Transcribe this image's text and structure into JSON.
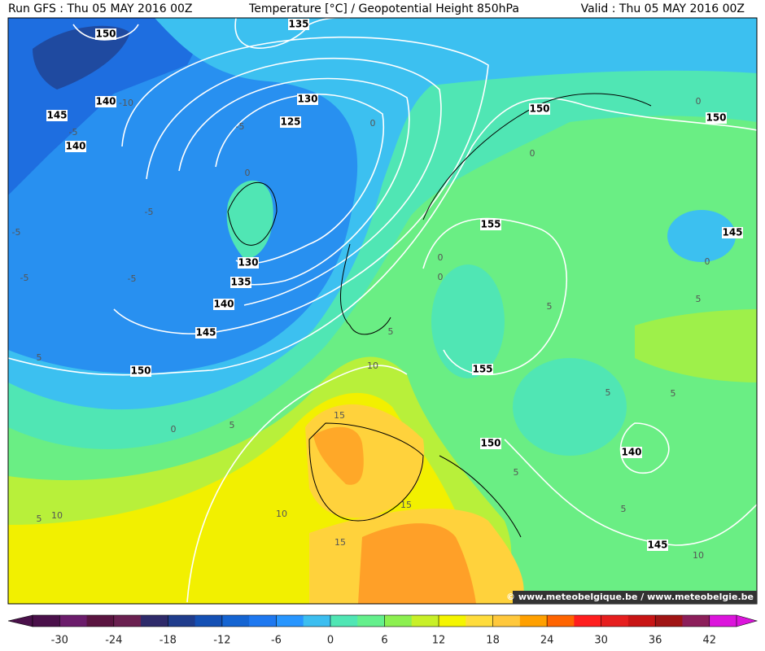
{
  "header": {
    "left": "Run GFS : Thu 05 MAY 2016 00Z",
    "center": "Temperature [°C] / Geopotential Height 850hPa",
    "right": "Valid : Thu 05 MAY 2016 00Z"
  },
  "watermark": "© www.meteobelgique.be / www.meteobelgie.be",
  "map": {
    "height_labels": [
      150,
      135,
      145,
      140,
      140,
      130,
      125,
      130,
      135,
      140,
      145,
      150,
      150,
      150,
      155,
      145,
      155,
      150,
      140,
      145
    ],
    "temperature_labels": [
      -10,
      -5,
      -5,
      0,
      0,
      -5,
      -5,
      -5,
      -5,
      0,
      0,
      0,
      0,
      0,
      5,
      5,
      5,
      5,
      10,
      0,
      5,
      15,
      5,
      5,
      5,
      5,
      5,
      10,
      10,
      15,
      15,
      10
    ]
  },
  "colorbar": {
    "range": [
      -33,
      45
    ],
    "ticks": [
      -30,
      -24,
      -18,
      -12,
      -6,
      0,
      6,
      12,
      18,
      24,
      30,
      36,
      42
    ],
    "colors": [
      "#4a104a",
      "#6b1c6b",
      "#5a1440",
      "#6a2050",
      "#2e2a6a",
      "#1f3c8c",
      "#1450b4",
      "#1464d2",
      "#1e78f0",
      "#2896ff",
      "#3cbef0",
      "#50e6b4",
      "#64f08c",
      "#8cf050",
      "#c8f028",
      "#f5f500",
      "#ffdc3c",
      "#ffc83c",
      "#ffa000",
      "#ff6400",
      "#ff1e1e",
      "#e61e1e",
      "#c81414",
      "#a01414",
      "#8c1e5a",
      "#dc14dc"
    ]
  }
}
